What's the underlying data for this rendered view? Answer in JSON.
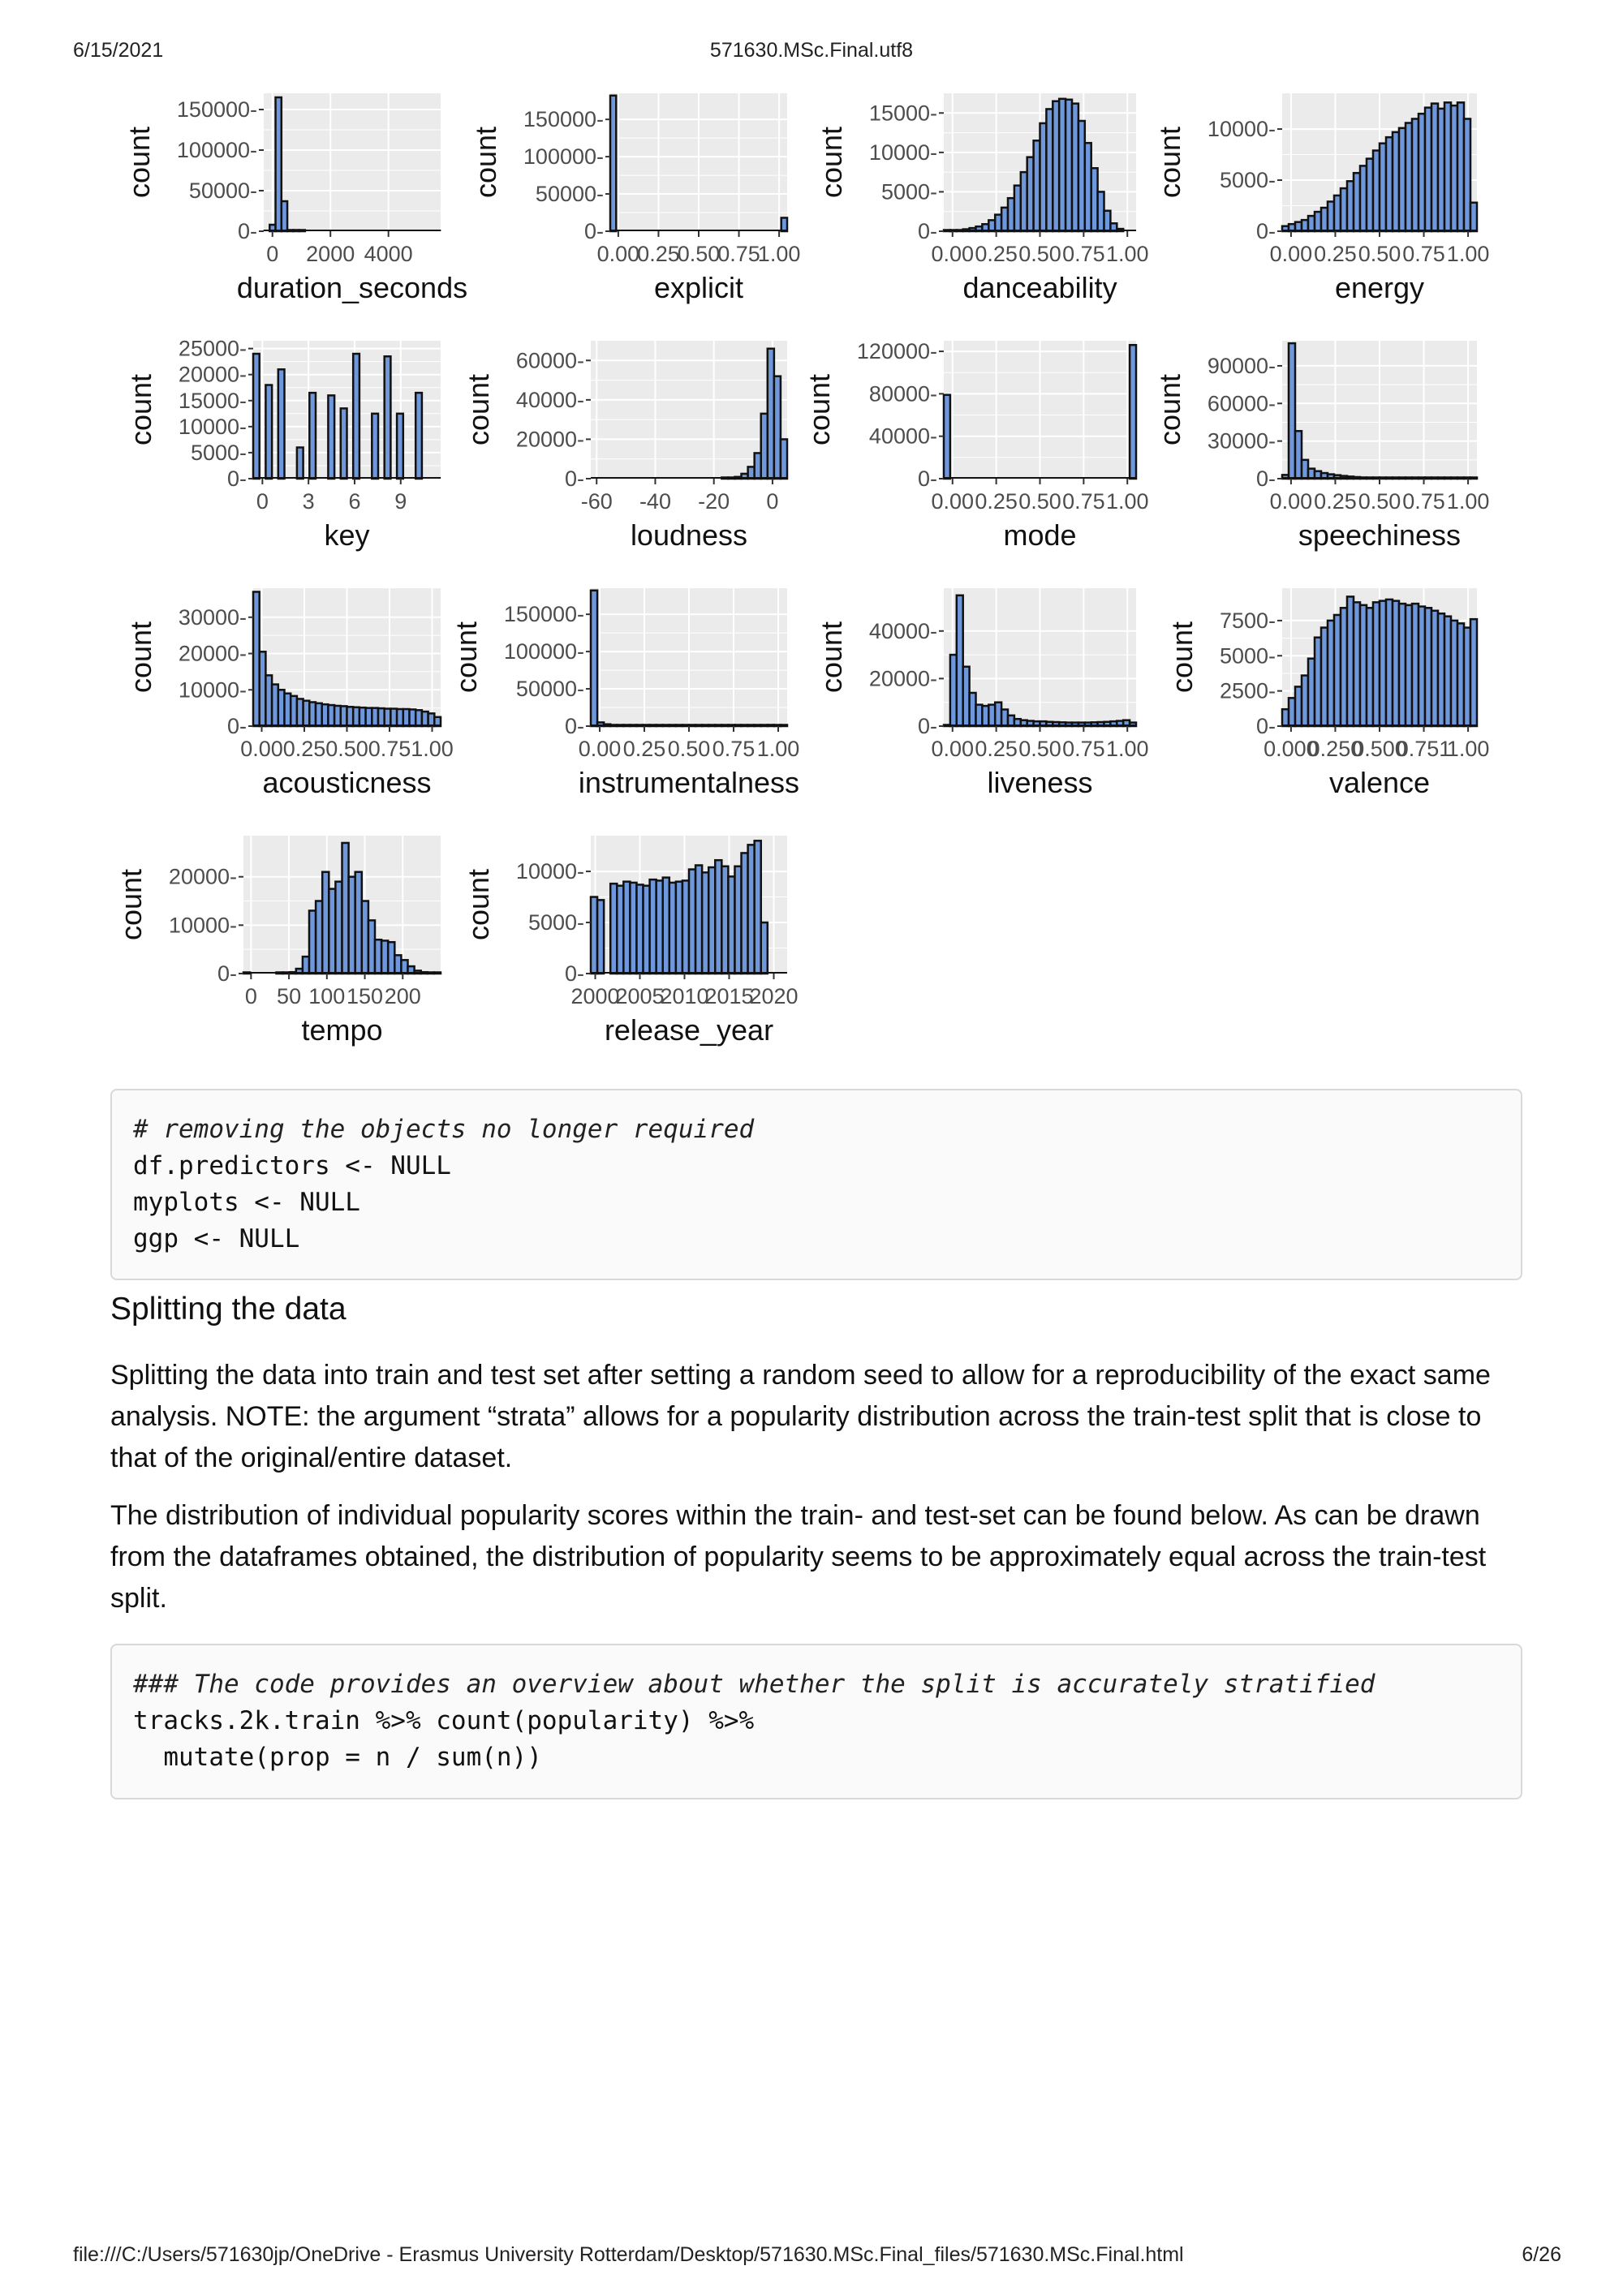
{
  "header": {
    "date": "6/15/2021",
    "doc_title": "571630.MSc.Final.utf8"
  },
  "footer": {
    "path": "file:///C:/Users/571630jp/OneDrive - Erasmus University Rotterdam/Desktop/571630.MSc.Final_files/571630.MSc.Final.html",
    "page": "6/26"
  },
  "colors": {
    "bar_fill": "#6f97dc",
    "bar_stroke": "#111111",
    "panel_bg": "#ebebeb",
    "grid": "#ffffff"
  },
  "chart_data": [
    {
      "type": "bar",
      "xlabel": "duration_seconds",
      "ylabel": "count",
      "xlim": [
        -300,
        5800
      ],
      "ylim": [
        0,
        170000
      ],
      "xticks": [
        0,
        2000,
        4000
      ],
      "xtick_labels": [
        "0",
        "2000",
        "4000"
      ],
      "yticks": [
        0,
        50000,
        100000,
        150000
      ],
      "ytick_labels": [
        "0-",
        "50000-",
        "100000-",
        "150000-"
      ],
      "values": [
        0,
        8000,
        165000,
        37000,
        1500,
        300,
        100,
        0,
        0,
        0,
        0,
        0,
        0,
        0,
        0,
        0,
        0,
        0,
        0,
        0,
        0,
        0,
        0,
        0,
        0,
        0,
        0,
        0,
        0,
        0
      ]
    },
    {
      "type": "bar",
      "xlabel": "explicit",
      "ylabel": "count",
      "xlim": [
        -0.05,
        1.05
      ],
      "ylim": [
        0,
        185000
      ],
      "xticks": [
        0,
        0.25,
        0.5,
        0.75,
        1.0
      ],
      "xtick_labels": [
        "0.00",
        "0.25",
        "0.50",
        "0.75",
        "1.00"
      ],
      "yticks": [
        0,
        50000,
        100000,
        150000
      ],
      "ytick_labels": [
        "0-",
        "50000-",
        "100000-",
        "150000-"
      ],
      "values": [
        182000,
        0,
        0,
        0,
        0,
        0,
        0,
        0,
        0,
        0,
        0,
        0,
        0,
        0,
        0,
        0,
        0,
        0,
        0,
        0,
        0,
        0,
        0,
        0,
        0,
        0,
        0,
        0,
        0,
        18000
      ]
    },
    {
      "type": "bar",
      "xlabel": "danceability",
      "ylabel": "count",
      "xlim": [
        -0.05,
        1.05
      ],
      "ylim": [
        0,
        17500
      ],
      "xticks": [
        0,
        0.25,
        0.5,
        0.75,
        1.0
      ],
      "xtick_labels": [
        "0.00",
        "0.25",
        "0.50",
        "0.75",
        "1.00"
      ],
      "yticks": [
        0,
        5000,
        10000,
        15000
      ],
      "ytick_labels": [
        "0-",
        "5000-",
        "10000-",
        "15000-"
      ],
      "values": [
        50,
        100,
        150,
        250,
        400,
        600,
        900,
        1400,
        2100,
        3000,
        4200,
        5800,
        7500,
        9400,
        11500,
        13700,
        15500,
        16500,
        16800,
        16700,
        16200,
        14000,
        11200,
        8000,
        5000,
        2600,
        1000,
        300,
        0,
        0
      ]
    },
    {
      "type": "bar",
      "xlabel": "energy",
      "ylabel": "count",
      "xlim": [
        -0.05,
        1.05
      ],
      "ylim": [
        0,
        13500
      ],
      "xticks": [
        0,
        0.25,
        0.5,
        0.75,
        1.0
      ],
      "xtick_labels": [
        "0.00",
        "0.25",
        "0.50",
        "0.75",
        "1.00"
      ],
      "yticks": [
        0,
        5000,
        10000
      ],
      "ytick_labels": [
        "0-",
        "5000-",
        "10000-"
      ],
      "values": [
        500,
        700,
        900,
        1100,
        1500,
        1900,
        2300,
        2900,
        3500,
        4200,
        4900,
        5700,
        6400,
        7100,
        7900,
        8600,
        9200,
        9700,
        10100,
        10600,
        11000,
        11500,
        12100,
        12500,
        12000,
        12600,
        12300,
        12600,
        11000,
        2800
      ]
    },
    {
      "type": "bar",
      "xlabel": "key",
      "ylabel": "count",
      "xlim": [
        -0.6,
        11.6
      ],
      "ylim": [
        0,
        26500
      ],
      "xticks": [
        0,
        3,
        6,
        9
      ],
      "xtick_labels": [
        "0",
        "3",
        "6",
        "9"
      ],
      "yticks": [
        0,
        5000,
        10000,
        15000,
        20000,
        25000
      ],
      "ytick_labels": [
        "0-",
        "5000-",
        "10000-",
        "15000-",
        "20000-",
        "25000-"
      ],
      "values": [
        24000,
        0,
        18000,
        0,
        21000,
        0,
        0,
        6000,
        0,
        16500,
        0,
        0,
        16000,
        0,
        13500,
        0,
        24000,
        0,
        0,
        12500,
        0,
        23500,
        0,
        12500,
        0,
        0,
        16500,
        0,
        0,
        0
      ]
    },
    {
      "type": "bar",
      "xlabel": "loudness",
      "ylabel": "count",
      "xlim": [
        -62,
        5
      ],
      "ylim": [
        0,
        70000
      ],
      "xticks": [
        -60,
        -40,
        -20,
        0
      ],
      "xtick_labels": [
        "-60",
        "-40",
        "-20",
        "0"
      ],
      "yticks": [
        0,
        20000,
        40000,
        60000
      ],
      "ytick_labels": [
        "0-",
        "20000-",
        "40000-",
        "60000-"
      ],
      "values": [
        0,
        0,
        0,
        0,
        0,
        0,
        0,
        0,
        0,
        0,
        0,
        0,
        0,
        0,
        0,
        0,
        0,
        0,
        0,
        0,
        200,
        400,
        900,
        2500,
        6000,
        13000,
        33000,
        66000,
        52000,
        20000
      ]
    },
    {
      "type": "bar",
      "xlabel": "mode",
      "ylabel": "count",
      "xlim": [
        -0.05,
        1.05
      ],
      "ylim": [
        0,
        130000
      ],
      "xticks": [
        0,
        0.25,
        0.5,
        0.75,
        1.0
      ],
      "xtick_labels": [
        "0.00",
        "0.25",
        "0.50",
        "0.75",
        "1.00"
      ],
      "yticks": [
        0,
        40000,
        80000,
        120000
      ],
      "ytick_labels": [
        "0-",
        "40000-",
        "80000-",
        "120000-"
      ],
      "values": [
        79000,
        0,
        0,
        0,
        0,
        0,
        0,
        0,
        0,
        0,
        0,
        0,
        0,
        0,
        0,
        0,
        0,
        0,
        0,
        0,
        0,
        0,
        0,
        0,
        0,
        0,
        0,
        0,
        0,
        126000
      ]
    },
    {
      "type": "bar",
      "xlabel": "speechiness",
      "ylabel": "count",
      "xlim": [
        -0.05,
        1.05
      ],
      "ylim": [
        0,
        110000
      ],
      "xticks": [
        0,
        0.25,
        0.5,
        0.75,
        1.0
      ],
      "xtick_labels": [
        "0.00",
        "0.25",
        "0.50",
        "0.75",
        "1.00"
      ],
      "yticks": [
        0,
        30000,
        60000,
        90000
      ],
      "ytick_labels": [
        "0-",
        "30000-",
        "60000-",
        "90000-"
      ],
      "values": [
        3000,
        108000,
        38000,
        15000,
        8000,
        6000,
        4500,
        3500,
        2800,
        2200,
        1700,
        1300,
        1000,
        800,
        600,
        500,
        400,
        300,
        200,
        200,
        100,
        100,
        100,
        100,
        100,
        100,
        100,
        100,
        100,
        200
      ]
    },
    {
      "type": "bar",
      "xlabel": "acousticness",
      "ylabel": "count",
      "xlim": [
        -0.05,
        1.05
      ],
      "ylim": [
        0,
        38000
      ],
      "xticks": [
        0,
        0.25,
        0.5,
        0.75,
        1.0
      ],
      "xtick_labels": [
        "0.00",
        "0.25",
        "0.50",
        "0.75",
        "1.00"
      ],
      "yticks": [
        0,
        10000,
        20000,
        30000
      ],
      "ytick_labels": [
        "0-",
        "10000-",
        "20000-",
        "30000-"
      ],
      "values": [
        37000,
        20500,
        14000,
        11500,
        10000,
        9000,
        8300,
        7500,
        7000,
        6600,
        6300,
        6000,
        5800,
        5600,
        5500,
        5300,
        5200,
        5100,
        5000,
        5000,
        4900,
        4800,
        4800,
        4700,
        4700,
        4600,
        4400,
        4000,
        3500,
        2500
      ]
    },
    {
      "type": "bar",
      "xlabel": "instrumentalness",
      "ylabel": "count",
      "xlim": [
        -0.05,
        1.05
      ],
      "ylim": [
        0,
        185000
      ],
      "xticks": [
        0,
        0.25,
        0.5,
        0.75,
        1.0
      ],
      "xtick_labels": [
        "0.00",
        "0.25",
        "0.50",
        "0.75",
        "1.00"
      ],
      "yticks": [
        0,
        50000,
        100000,
        150000
      ],
      "ytick_labels": [
        "0-",
        "50000-",
        "100000-",
        "150000-"
      ],
      "values": [
        182000,
        5000,
        2500,
        1500,
        1000,
        800,
        700,
        600,
        500,
        500,
        500,
        500,
        500,
        500,
        500,
        500,
        500,
        500,
        500,
        500,
        600,
        600,
        700,
        800,
        1000,
        1200,
        1500,
        1700,
        1500,
        500
      ]
    },
    {
      "type": "bar",
      "xlabel": "liveness",
      "ylabel": "count",
      "xlim": [
        -0.05,
        1.05
      ],
      "ylim": [
        0,
        58000
      ],
      "xticks": [
        0,
        0.25,
        0.5,
        0.75,
        1.0
      ],
      "xtick_labels": [
        "0.00",
        "0.25",
        "0.50",
        "0.75",
        "1.00"
      ],
      "yticks": [
        0,
        20000,
        40000
      ],
      "ytick_labels": [
        "0-",
        "20000-",
        "40000-"
      ],
      "values": [
        500,
        30000,
        55000,
        25000,
        14000,
        9000,
        8500,
        9000,
        10000,
        7000,
        4500,
        3000,
        2500,
        2200,
        2000,
        2000,
        1800,
        1700,
        1600,
        1500,
        1500,
        1500,
        1500,
        1600,
        1700,
        1800,
        2000,
        2200,
        2500,
        1500
      ]
    },
    {
      "type": "bar",
      "xlabel": "valence",
      "ylabel": "count",
      "xlim": [
        -0.05,
        1.05
      ],
      "ylim": [
        0,
        9800
      ],
      "xticks": [
        0,
        0.25,
        0.5,
        0.75,
        1.0
      ],
      "xtick_labels": [
        "0.000",
        "0.250",
        "0.500",
        "0.751",
        "1.00"
      ],
      "yticks": [
        0,
        2500,
        5000,
        7500
      ],
      "ytick_labels": [
        "0-",
        "2500-",
        "5000-",
        "7500-"
      ],
      "values": [
        1200,
        2000,
        2800,
        3600,
        4800,
        6300,
        7000,
        7500,
        7900,
        8400,
        9200,
        8800,
        8600,
        8400,
        8800,
        8900,
        9000,
        8900,
        8700,
        8600,
        8700,
        8500,
        8400,
        8200,
        8000,
        7800,
        7500,
        7300,
        7000,
        7600
      ]
    },
    {
      "type": "bar",
      "xlabel": "tempo",
      "ylabel": "count",
      "xlim": [
        -10,
        250
      ],
      "ylim": [
        0,
        28500
      ],
      "xticks": [
        0,
        50,
        100,
        150,
        200
      ],
      "xtick_labels": [
        "0",
        "50",
        "100",
        "150",
        "200"
      ],
      "yticks": [
        0,
        10000,
        20000
      ],
      "ytick_labels": [
        "0-",
        "10000-",
        "20000-"
      ],
      "values": [
        100,
        0,
        0,
        0,
        0,
        50,
        100,
        300,
        1000,
        3500,
        13000,
        15000,
        21000,
        17500,
        19000,
        27000,
        20000,
        21000,
        15000,
        11000,
        7000,
        6800,
        6500,
        3800,
        2800,
        1500,
        600,
        300,
        100,
        50
      ]
    },
    {
      "type": "bar",
      "xlabel": "release_year",
      "ylabel": "count",
      "xlim": [
        1999.5,
        2021.5
      ],
      "ylim": [
        0,
        13500
      ],
      "xticks": [
        2000,
        2005,
        2010,
        2015,
        2020
      ],
      "xtick_labels": [
        "2000",
        "2005",
        "2010",
        "2015",
        "2020"
      ],
      "yticks": [
        0,
        5000,
        10000
      ],
      "ytick_labels": [
        "0-",
        "5000-",
        "10000-"
      ],
      "values": [
        7500,
        7200,
        0,
        8800,
        8600,
        9000,
        8900,
        8700,
        8600,
        9200,
        9100,
        9400,
        8900,
        9000,
        9100,
        10200,
        10600,
        9900,
        10400,
        11100,
        10500,
        9500,
        10500,
        11800,
        12600,
        13000,
        5000,
        0,
        0,
        0
      ]
    }
  ],
  "code_block_1": [
    "# removing the objects no longer required",
    "df.predictors <- NULL",
    "myplots <- NULL",
    "ggp <- NULL"
  ],
  "section_title": "Splitting the data",
  "paragraph_1": "Splitting the data into train and test set after setting a random seed to allow for a reproducibility of the exact same analysis. NOTE: the argument “strata” allows for a popularity distribution across the train-test split that is close to that of the original/entire dataset.",
  "paragraph_2": "The distribution of individual popularity scores within the train- and test-set can be found below. As can be drawn from the dataframes obtained, the distribution of popularity seems to be approximately equal across the train-test split.",
  "code_block_2": [
    "### The code provides an overview about whether the split is accurately stratified",
    "tracks.2k.train %>% count(popularity) %>%",
    "  mutate(prop = n / sum(n))"
  ]
}
